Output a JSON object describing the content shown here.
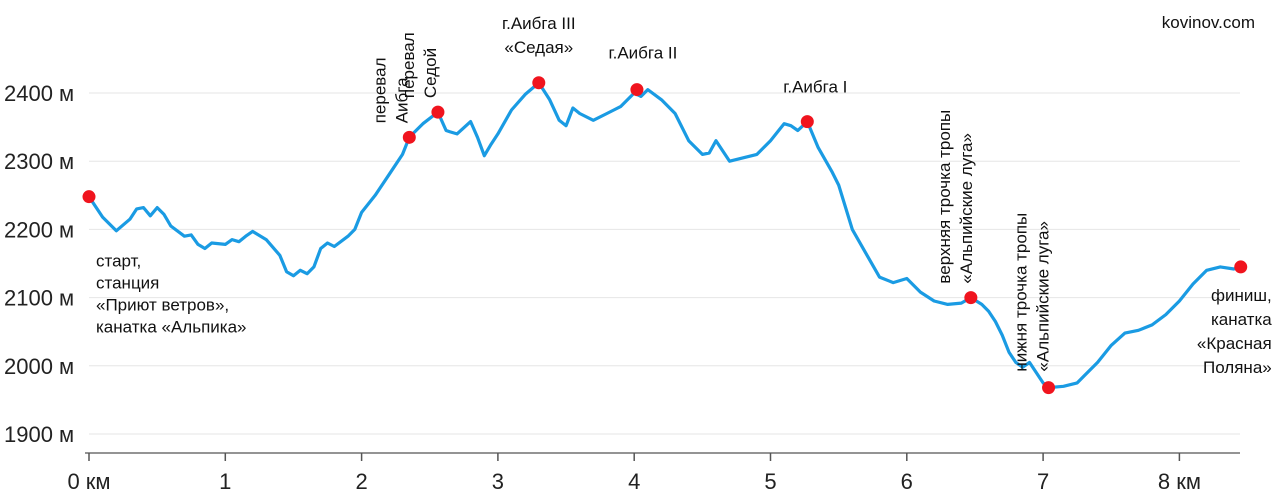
{
  "credit": "kovinov.com",
  "chart_data": {
    "type": "line",
    "title": "",
    "xlabel": "",
    "ylabel": "",
    "xlim": [
      0,
      8.45
    ],
    "ylim": [
      1880,
      2490
    ],
    "grid": true,
    "y_ticks": [
      {
        "value": 1900,
        "label": "1900 м"
      },
      {
        "value": 2000,
        "label": "2000 м"
      },
      {
        "value": 2100,
        "label": "2100 м"
      },
      {
        "value": 2200,
        "label": "2200 м"
      },
      {
        "value": 2300,
        "label": "2300 м"
      },
      {
        "value": 2400,
        "label": "2400 м"
      }
    ],
    "x_ticks": [
      {
        "value": 0,
        "label": "0 км"
      },
      {
        "value": 1,
        "label": "1"
      },
      {
        "value": 2,
        "label": "2"
      },
      {
        "value": 3,
        "label": "3"
      },
      {
        "value": 4,
        "label": "4"
      },
      {
        "value": 5,
        "label": "5"
      },
      {
        "value": 6,
        "label": "6"
      },
      {
        "value": 7,
        "label": "7"
      },
      {
        "value": 8,
        "label": "8 км"
      }
    ],
    "line_color": "#1a9be3",
    "point_color": "#f0141e",
    "series": [
      {
        "x": [
          0,
          0.1,
          0.2,
          0.3,
          0.35,
          0.4,
          0.45,
          0.5,
          0.55,
          0.6,
          0.7,
          0.75,
          0.8,
          0.85,
          0.9,
          1.0,
          1.05,
          1.1,
          1.15,
          1.2,
          1.3,
          1.4,
          1.45,
          1.5,
          1.55,
          1.6,
          1.65,
          1.7,
          1.75,
          1.8,
          1.9,
          1.95,
          2.0,
          2.1,
          2.2,
          2.3,
          2.35,
          2.45,
          2.56,
          2.62,
          2.65,
          2.7,
          2.8,
          2.85,
          2.9,
          2.95,
          3.0,
          3.1,
          3.2,
          3.3,
          3.38,
          3.45,
          3.5,
          3.55,
          3.6,
          3.7,
          3.8,
          3.85,
          3.9,
          4.0,
          4.05,
          4.1,
          4.2,
          4.3,
          4.4,
          4.5,
          4.55,
          4.6,
          4.7,
          4.8,
          4.9,
          5.0,
          5.1,
          5.15,
          5.2,
          5.27,
          5.35,
          5.45,
          5.5,
          5.6,
          5.7,
          5.8,
          5.9,
          6.0,
          6.1,
          6.2,
          6.3,
          6.4,
          6.47,
          6.55,
          6.6,
          6.65,
          6.7,
          6.75,
          6.8,
          6.85,
          6.9,
          7.0,
          7.04,
          7.15,
          7.25,
          7.3,
          7.4,
          7.5,
          7.6,
          7.7,
          7.8,
          7.9,
          8.0,
          8.1,
          8.2,
          8.3,
          8.4,
          8.45
        ],
        "y": [
          2248,
          2218,
          2198,
          2215,
          2230,
          2232,
          2220,
          2232,
          2222,
          2205,
          2190,
          2192,
          2178,
          2172,
          2180,
          2178,
          2185,
          2182,
          2190,
          2197,
          2185,
          2162,
          2138,
          2132,
          2140,
          2135,
          2145,
          2172,
          2180,
          2175,
          2190,
          2200,
          2225,
          2250,
          2280,
          2310,
          2335,
          2355,
          2372,
          2345,
          2343,
          2340,
          2358,
          2335,
          2308,
          2325,
          2340,
          2375,
          2398,
          2415,
          2390,
          2360,
          2352,
          2378,
          2370,
          2360,
          2370,
          2375,
          2380,
          2400,
          2395,
          2405,
          2390,
          2370,
          2330,
          2310,
          2312,
          2330,
          2300,
          2305,
          2310,
          2330,
          2355,
          2352,
          2345,
          2358,
          2320,
          2285,
          2265,
          2200,
          2165,
          2130,
          2122,
          2128,
          2108,
          2095,
          2090,
          2092,
          2100,
          2090,
          2080,
          2065,
          2045,
          2020,
          2005,
          1998,
          2005,
          1975,
          1968,
          1970,
          1975,
          1985,
          2005,
          2030,
          2048,
          2052,
          2060,
          2075,
          2095,
          2120,
          2140,
          2145,
          2142,
          2145
        ]
      }
    ],
    "points": [
      {
        "x": 0,
        "y": 2248,
        "lines": [
          "старт,",
          "станция",
          "«Приют ветров»,",
          "канатка «Альпика»"
        ]
      },
      {
        "x": 2.35,
        "y": 2335,
        "lines": [
          "перевал",
          "Аибга"
        ],
        "vertical": true
      },
      {
        "x": 2.56,
        "y": 2372,
        "lines": [
          "перевал",
          "Седой"
        ],
        "vertical": true
      },
      {
        "x": 3.3,
        "y": 2415,
        "lines": [
          "г.Аибга III",
          "«Седая»"
        ]
      },
      {
        "x": 4.02,
        "y": 2405,
        "lines": [
          "г.Аибга II"
        ]
      },
      {
        "x": 5.27,
        "y": 2358,
        "lines": [
          "г.Аибга I"
        ]
      },
      {
        "x": 6.47,
        "y": 2100,
        "lines": [
          "верхняя трочка тропы",
          "«Альпийские луга»"
        ],
        "vertical": true
      },
      {
        "x": 7.04,
        "y": 1968,
        "lines": [
          "нижня трочка тропы",
          "«Альпийские луга»"
        ],
        "vertical": true
      },
      {
        "x": 8.45,
        "y": 2145,
        "lines": [
          "финиш,",
          "канатка",
          "«Красная",
          "Поляна»"
        ]
      }
    ]
  }
}
